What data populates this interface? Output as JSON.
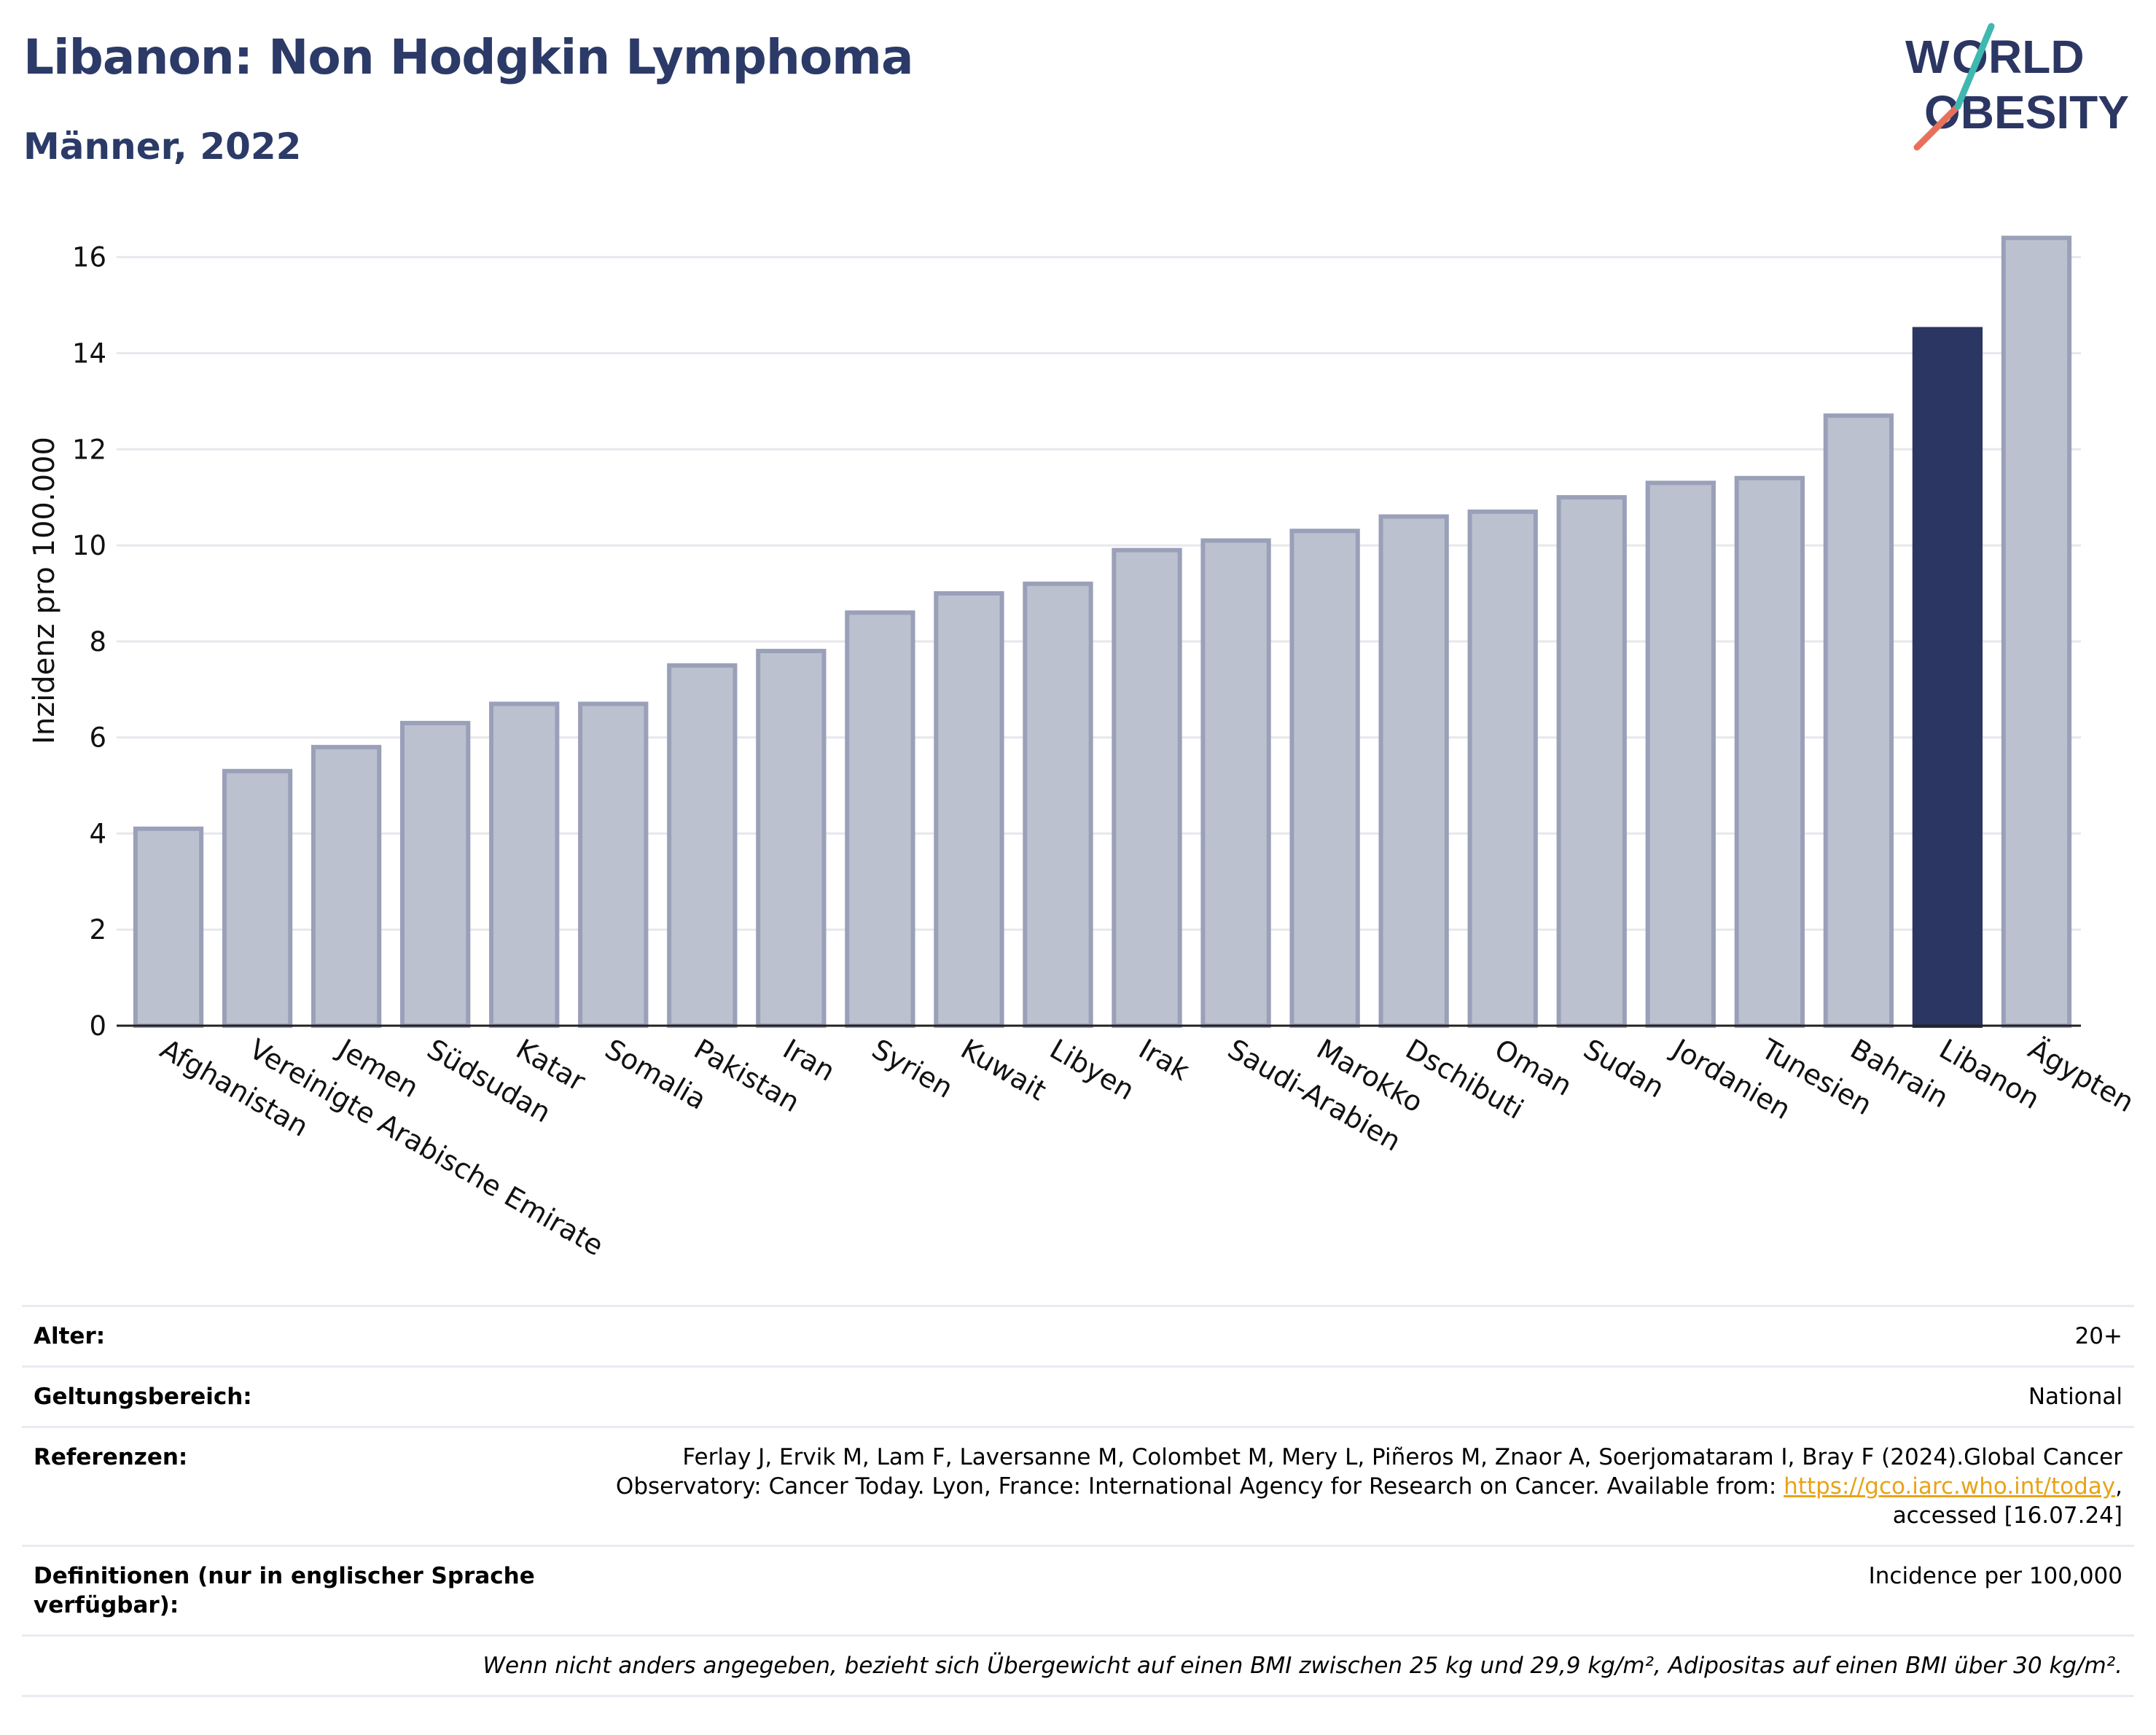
{
  "header": {
    "title": "Libanon: Non Hodgkin Lymphoma",
    "subtitle": "Männer, 2022"
  },
  "logo": {
    "line1": "WORLD",
    "line2": "OBESITY"
  },
  "colors": {
    "bar": "#bcc1cf",
    "bar_border": "#9aa0b8",
    "highlight": "#2b3662",
    "title": "#2b3a67",
    "grid": "#e6e8ee"
  },
  "chart_data": {
    "type": "bar",
    "ylabel": "Inzidenz pro 100.000",
    "ylim": [
      0,
      16.8
    ],
    "yticks": [
      0,
      2,
      4,
      6,
      8,
      10,
      12,
      14,
      16
    ],
    "highlight": "Libanon",
    "categories": [
      "Afghanistan",
      "Vereinigte Arabische Emirate",
      "Jemen",
      "Südsudan",
      "Katar",
      "Somalia",
      "Pakistan",
      "Iran",
      "Syrien",
      "Kuwait",
      "Libyen",
      "Irak",
      "Saudi-Arabien",
      "Marokko",
      "Dschibuti",
      "Oman",
      "Sudan",
      "Jordanien",
      "Tunesien",
      "Bahrain",
      "Libanon",
      "Ägypten"
    ],
    "values": [
      4.1,
      5.3,
      5.8,
      6.3,
      6.7,
      6.7,
      7.5,
      7.8,
      8.6,
      9.0,
      9.2,
      9.9,
      10.1,
      10.3,
      10.6,
      10.7,
      11.0,
      11.3,
      11.4,
      12.7,
      14.5,
      16.4
    ]
  },
  "info": {
    "age_label": "Alter:",
    "age_value": "20+",
    "scope_label": "Geltungsbereich:",
    "scope_value": "National",
    "ref_label": "Referenzen:",
    "ref_text_1": "Ferlay J, Ervik M, Lam F, Laversanne M, Colombet M, Mery L, Piñeros M, Znaor A, Soerjomataram I, Bray F (2024).Global Cancer Observatory: Cancer Today. Lyon, France: International Agency for Research on Cancer. Available from: ",
    "ref_link": "https://gco.iarc.who.int/today",
    "ref_text_2": ", accessed [16.07.24]",
    "def_label": "Definitionen (nur in englischer Sprache verfügbar):",
    "def_value": "Incidence per 100,000",
    "note": "Wenn nicht anders angegeben, bezieht sich Übergewicht auf einen BMI zwischen 25 kg und 29,9 kg/m², Adipositas auf einen BMI über 30 kg/m²."
  }
}
